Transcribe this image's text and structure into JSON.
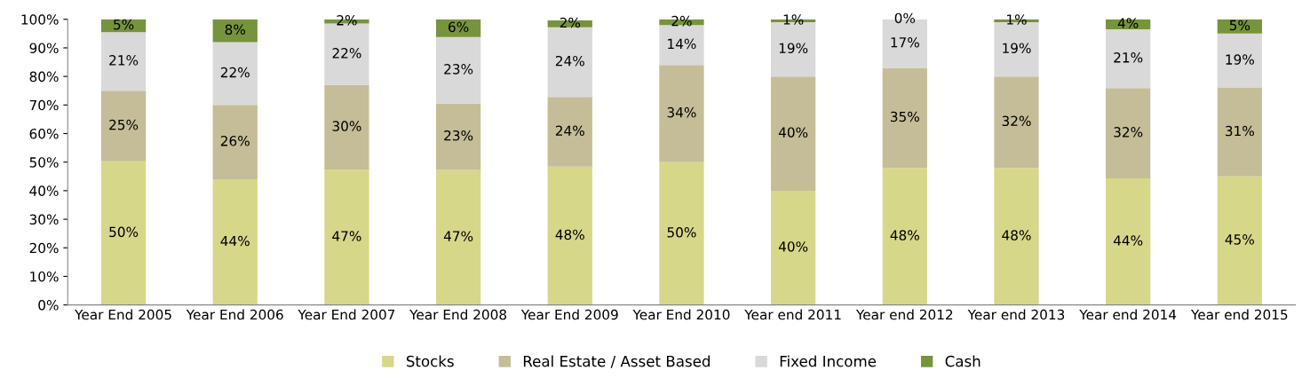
{
  "chart_data": {
    "type": "bar",
    "stacked": true,
    "categories": [
      "Year End 2005",
      "Year End 2006",
      "Year End 2007",
      "Year End 2008",
      "Year End 2009",
      "Year End 2010",
      "Year end 2011",
      "Year end 2012",
      "Year end 2013",
      "Year end 2014",
      "Year end 2015"
    ],
    "series": [
      {
        "name": "Stocks",
        "color": "#d7d78a",
        "values": [
          50.3,
          44,
          47.4,
          47.3,
          48.4,
          50,
          40,
          48,
          48,
          44.3,
          45
        ],
        "value_labels": [
          "50%",
          "44%",
          "47%",
          "47%",
          "48%",
          "50%",
          "40%",
          "48%",
          "48%",
          "44%",
          "45%"
        ]
      },
      {
        "name": "Real Estate / Asset Based",
        "color": "#c4bd97",
        "values": [
          24.7,
          26,
          29.6,
          23.2,
          24.4,
          34,
          40,
          35,
          32,
          31.6,
          31
        ],
        "value_labels": [
          "25%",
          "26%",
          "30%",
          "23%",
          "24%",
          "34%",
          "40%",
          "35%",
          "32%",
          "32%",
          "31%"
        ]
      },
      {
        "name": "Fixed Income",
        "color": "#d9d9d9",
        "values": [
          20.5,
          22,
          21.5,
          23.3,
          24.4,
          14,
          19,
          17,
          19,
          20.6,
          19
        ],
        "value_labels": [
          "21%",
          "22%",
          "22%",
          "23%",
          "24%",
          "14%",
          "19%",
          "17%",
          "19%",
          "21%",
          "19%"
        ]
      },
      {
        "name": "Cash",
        "color": "#77933c",
        "values": [
          4.5,
          8,
          1.5,
          6.2,
          2.4,
          2,
          1,
          0,
          1,
          3.5,
          5
        ],
        "value_labels": [
          "5%",
          "8%",
          "2%",
          "6%",
          "2%",
          "2%",
          "1%",
          "0%",
          "1%",
          "4%",
          "5%"
        ]
      }
    ],
    "ylim": [
      0,
      100
    ],
    "yticks": [
      {
        "value": 0,
        "label": "0%"
      },
      {
        "value": 10,
        "label": "10%"
      },
      {
        "value": 20,
        "label": "20%"
      },
      {
        "value": 30,
        "label": "30%"
      },
      {
        "value": 40,
        "label": "40%"
      },
      {
        "value": 50,
        "label": "50%"
      },
      {
        "value": 60,
        "label": "60%"
      },
      {
        "value": 70,
        "label": "70%"
      },
      {
        "value": 80,
        "label": "80%"
      },
      {
        "value": 90,
        "label": "90%"
      },
      {
        "value": 100,
        "label": "100%"
      }
    ],
    "grid": false,
    "legend": "bottom"
  }
}
